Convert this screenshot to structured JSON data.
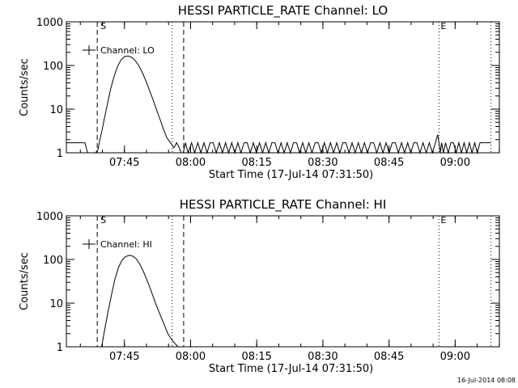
{
  "footer": {
    "timestamp": "16-Jul-2014 08:08"
  },
  "chart_data": [
    {
      "type": "line",
      "title": "HESSI PARTICLE_RATE Channel: LO",
      "xlabel": "Start Time (17-Jul-14 07:31:50)",
      "ylabel": "Counts/sec",
      "yscale": "log",
      "ylim": [
        1,
        1000
      ],
      "y_ticks": [
        1,
        10,
        100,
        1000
      ],
      "y_tick_labels": [
        "1",
        "10",
        "100",
        "1000"
      ],
      "xlim_minutes": [
        0,
        98.2
      ],
      "x_ticks_minutes": [
        13.17,
        28.17,
        43.17,
        58.17,
        73.17,
        88.17
      ],
      "x_tick_labels": [
        "07:45",
        "08:00",
        "08:15",
        "08:30",
        "08:45",
        "09:00"
      ],
      "legend": {
        "label": "Channel: LO",
        "position": "top-left"
      },
      "markers": {
        "start_label": "S",
        "end_label": "E"
      },
      "vlines_minutes": [
        {
          "x": 7.0,
          "style": "dashed"
        },
        {
          "x": 24.0,
          "style": "dotted"
        },
        {
          "x": 26.6,
          "style": "dashed"
        },
        {
          "x": 84.5,
          "style": "dotted"
        },
        {
          "x": 96.3,
          "style": "dotted"
        }
      ],
      "series": [
        {
          "x": [
            0,
            0.6,
            1.2,
            1.8,
            2.4,
            3.0,
            3.6,
            4.2,
            4.8,
            5.4,
            6.0,
            6.6,
            7.2,
            7.5,
            8.0,
            8.6,
            9.3,
            10.0,
            10.8,
            11.6,
            12.4,
            13.2,
            14.0,
            14.8,
            15.6,
            16.4,
            17.2,
            18.0,
            18.8,
            19.6,
            20.4,
            21.2,
            22.0,
            22.8,
            23.6,
            24.4,
            25.0,
            25.6,
            26.0,
            26.5,
            27.0,
            27.6,
            28.4,
            29.1,
            29.8,
            30.5,
            31.2,
            31.9,
            32.6,
            33.3,
            34.0,
            34.7,
            35.4,
            36.1,
            36.8,
            37.5,
            38.2,
            38.9,
            39.6,
            40.3,
            41.0,
            41.7,
            42.4,
            43.1,
            43.8,
            44.5,
            45.2,
            45.9,
            46.6,
            47.3,
            48.0,
            48.7,
            49.4,
            50.1,
            50.8,
            51.5,
            52.2,
            52.9,
            53.6,
            54.3,
            55.0,
            55.7,
            56.4,
            57.1,
            57.8,
            58.5,
            59.2,
            59.9,
            60.6,
            61.3,
            62.0,
            62.7,
            63.4,
            64.1,
            64.8,
            65.5,
            66.2,
            66.9,
            67.6,
            68.3,
            69.0,
            69.7,
            70.4,
            71.1,
            71.8,
            72.5,
            73.2,
            73.9,
            74.6,
            75.3,
            76.0,
            76.7,
            77.4,
            78.1,
            78.8,
            79.5,
            80.2,
            80.9,
            81.6,
            82.3,
            83.0,
            83.7,
            84.2,
            84.5,
            84.8,
            85.1,
            85.5,
            86.0,
            86.6,
            87.2,
            87.8,
            88.4,
            89.0,
            89.6,
            90.2,
            90.8,
            91.4,
            92.0,
            92.6,
            93.2,
            93.8,
            94.4,
            95.0,
            95.6,
            96.2
          ],
          "y": [
            1.7,
            1.7,
            1.7,
            1.7,
            1.7,
            1.7,
            1.7,
            1.7,
            1.0,
            1.0,
            1.0,
            1.0,
            1.2,
            1.8,
            3.0,
            6.0,
            13,
            28,
            55,
            95,
            135,
            160,
            165,
            155,
            130,
            100,
            70,
            45,
            28,
            17,
            10,
            6,
            3.5,
            2.2,
            1.7,
            1.3,
            1.7,
            1.3,
            1.0,
            1.0,
            1.7,
            1.0,
            1.7,
            1.0,
            1.7,
            1.0,
            1.7,
            1.0,
            1.7,
            1.7,
            1.0,
            1.7,
            1.0,
            1.7,
            1.0,
            1.7,
            1.0,
            1.7,
            1.0,
            1.7,
            1.7,
            1.0,
            1.7,
            1.0,
            1.7,
            1.0,
            1.7,
            1.0,
            1.7,
            1.7,
            1.0,
            1.7,
            1.0,
            1.7,
            1.0,
            1.7,
            1.7,
            1.0,
            1.7,
            1.0,
            1.7,
            1.0,
            1.7,
            1.7,
            1.0,
            1.7,
            1.0,
            1.7,
            1.0,
            1.7,
            1.0,
            1.7,
            1.7,
            1.0,
            1.7,
            1.0,
            1.7,
            1.0,
            1.7,
            1.0,
            1.7,
            1.7,
            1.0,
            1.7,
            1.0,
            1.7,
            1.0,
            1.7,
            1.7,
            1.0,
            1.7,
            1.0,
            1.7,
            1.0,
            1.7,
            1.7,
            1.0,
            1.7,
            1.0,
            1.7,
            1.0,
            1.7,
            2.6,
            1.7,
            1.0,
            1.7,
            1.0,
            1.7,
            1.0,
            1.7,
            1.7,
            1.0,
            1.7,
            1.0,
            1.7,
            1.0,
            1.7,
            1.0,
            1.7,
            1.0,
            1.7,
            1.7,
            1.7,
            1.7,
            1.7
          ]
        }
      ]
    },
    {
      "type": "line",
      "title": "HESSI PARTICLE_RATE Channel: HI",
      "xlabel": "Start Time (17-Jul-14 07:31:50)",
      "ylabel": "Counts/sec",
      "yscale": "log",
      "ylim": [
        1,
        1000
      ],
      "y_ticks": [
        1,
        10,
        100,
        1000
      ],
      "y_tick_labels": [
        "1",
        "10",
        "100",
        "1000"
      ],
      "xlim_minutes": [
        0,
        98.2
      ],
      "x_ticks_minutes": [
        13.17,
        28.17,
        43.17,
        58.17,
        73.17,
        88.17
      ],
      "x_tick_labels": [
        "07:45",
        "08:00",
        "08:15",
        "08:30",
        "08:45",
        "09:00"
      ],
      "legend": {
        "label": "Channel: HI",
        "position": "top-left"
      },
      "markers": {
        "start_label": "S",
        "end_label": "E"
      },
      "vlines_minutes": [
        {
          "x": 7.0,
          "style": "dashed"
        },
        {
          "x": 24.0,
          "style": "dotted"
        },
        {
          "x": 26.6,
          "style": "dashed"
        },
        {
          "x": 84.5,
          "style": "dotted"
        },
        {
          "x": 96.3,
          "style": "dotted"
        }
      ],
      "series": [
        {
          "x": [
            8.0,
            8.7,
            9.4,
            10.2,
            11.0,
            11.8,
            12.6,
            13.4,
            14.2,
            15.0,
            15.8,
            16.6,
            17.4,
            18.2,
            19.0,
            19.8,
            20.6,
            21.4,
            22.2,
            23.0,
            23.8,
            24.6,
            25.3
          ],
          "y": [
            1.0,
            2.5,
            6,
            15,
            35,
            65,
            95,
            115,
            125,
            120,
            105,
            80,
            55,
            35,
            22,
            13,
            8,
            5,
            3.2,
            2.0,
            1.5,
            1.2,
            1.0
          ]
        }
      ]
    }
  ]
}
